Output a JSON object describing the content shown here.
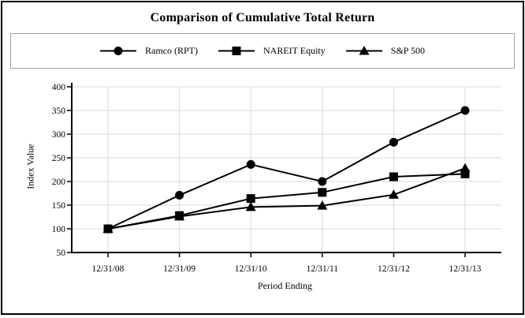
{
  "chart_data": {
    "type": "line",
    "title": "Comparison of Cumulative Total Return",
    "xlabel": "Period Ending",
    "ylabel": "Index Value",
    "categories": [
      "12/31/08",
      "12/31/09",
      "12/31/10",
      "12/31/11",
      "12/31/12",
      "12/31/13"
    ],
    "series": [
      {
        "name": "Ramco (RPT)",
        "marker": "circle",
        "values": [
          100,
          171,
          236,
          200,
          283,
          350
        ]
      },
      {
        "name": "NAREIT Equity",
        "marker": "square",
        "values": [
          100,
          128,
          164,
          177,
          210,
          216
        ]
      },
      {
        "name": "S&P 500",
        "marker": "triangle",
        "values": [
          100,
          126,
          146,
          149,
          172,
          228
        ]
      }
    ],
    "ylim": [
      50,
      400
    ],
    "yticks": [
      50,
      100,
      150,
      200,
      250,
      300,
      350,
      400
    ],
    "grid": true,
    "legend_position": "top",
    "colors": {
      "series_line": "#000000",
      "marker_fill": "#000000",
      "grid": "#d9d9d9",
      "axis": "#000000",
      "legend_border": "#a3a3a3",
      "figure_border": "#000000",
      "background": "#ffffff"
    }
  }
}
